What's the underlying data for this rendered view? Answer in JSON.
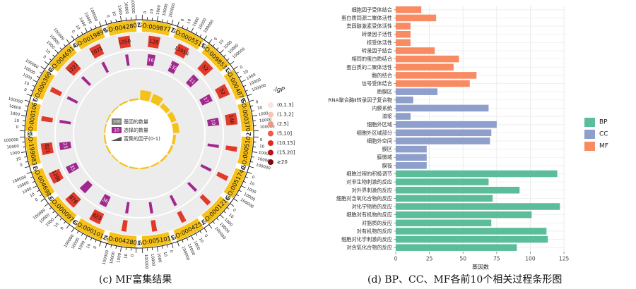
{
  "panel_c": {
    "caption": "(c)  MF富集结果",
    "terms": [
      "GO:0098772",
      "GO:0005515",
      "GO:0098531",
      "GO:0004879",
      "GO:0003707",
      "GO:0005102",
      "GO:0051740",
      "GO:0001216",
      "GO:0004252",
      "GO:0051015",
      "GO:0042803",
      "GO:0001012",
      "GO:0000976",
      "GO:0046983",
      "GO:1990837",
      "GO:0001067",
      "GO:0003690",
      "GO:0046914",
      "GO:0019899",
      "GO:0042802"
    ],
    "ring2_counts": [
      "126",
      "13916",
      "52",
      "52",
      "140",
      "",
      "",
      "",
      "",
      "",
      "",
      "823",
      "876",
      "1290",
      "821",
      "",
      "",
      "1221",
      "1071",
      "1050"
    ],
    "ring3_counts": [
      "16",
      "132",
      "11",
      "17",
      "10",
      "",
      "",
      "",
      "",
      "",
      "",
      "36",
      "",
      "35",
      "25",
      "",
      "",
      "",
      "",
      ""
    ],
    "legend": {
      "title": "-lgP",
      "bins": [
        "(0,1.3]",
        "(1.3,2]",
        "(2,5]",
        "(5,10]",
        "(10,15]",
        "(15,20]",
        "≥20"
      ],
      "bin_colors": [
        "#fbe4dc",
        "#f9c2b0",
        "#f5957b",
        "#ef5a42",
        "#e0281f",
        "#b9141a",
        "#7a0a0f"
      ]
    },
    "inner_legend": [
      {
        "swatch_label": "100",
        "text": "基因的数量",
        "color": "#7a7a7a"
      },
      {
        "swatch_label": "10",
        "text": "选择的数量",
        "color": "#a0288e"
      },
      {
        "swatch_label": "",
        "text": "富集的因子(0-1)",
        "color": "#555555"
      }
    ],
    "tick_labels": [
      "0",
      "10",
      "1000",
      "10000",
      "100000"
    ],
    "colors": {
      "outer_ring": "#f6c21a",
      "count_red": "#e23a2a",
      "count_purple": "#a0288e",
      "bg_ring": "#ececec",
      "bar_yellow": "#f6c21a"
    }
  },
  "panel_d": {
    "caption": "(d)  BP、CC、MF各前10个相关过程条形图"
  },
  "chart_data": {
    "type": "bar",
    "orientation": "horizontal",
    "xlabel": "基因数",
    "ylabel": "",
    "xlim": [
      0,
      126
    ],
    "xticks": [
      0,
      25,
      50,
      75,
      100,
      125
    ],
    "grid": true,
    "legend_position": "right",
    "legend": [
      {
        "name": "BP",
        "color": "#5cbd9a"
      },
      {
        "name": "CC",
        "color": "#8e9fcb"
      },
      {
        "name": "MF",
        "color": "#f88b62"
      }
    ],
    "bars": [
      {
        "label": "细胞因子受体结合",
        "value": 19,
        "group": "MF"
      },
      {
        "label": "蛋白质同源二聚体活性",
        "value": 30,
        "group": "MF"
      },
      {
        "label": "类固醇激素受体活性",
        "value": 11,
        "group": "MF"
      },
      {
        "label": "转录因子活性",
        "value": 11,
        "group": "MF"
      },
      {
        "label": "核受体活性",
        "value": 11,
        "group": "MF"
      },
      {
        "label": "转录因子结合",
        "value": 29,
        "group": "MF"
      },
      {
        "label": "相同的蛋白质结合",
        "value": 47,
        "group": "MF"
      },
      {
        "label": "蛋白质的二聚体活性",
        "value": 43,
        "group": "MF"
      },
      {
        "label": "酶的结合",
        "value": 60,
        "group": "MF"
      },
      {
        "label": "信号受体结合",
        "value": 55,
        "group": "MF"
      },
      {
        "label": "质膜区",
        "value": 31,
        "group": "CC"
      },
      {
        "label": "RNA聚合酶Ⅱ转录因子复合物",
        "value": 13,
        "group": "CC"
      },
      {
        "label": "内膜系统",
        "value": 69,
        "group": "CC"
      },
      {
        "label": "溶浆",
        "value": 11,
        "group": "CC"
      },
      {
        "label": "细胞外区域",
        "value": 75,
        "group": "CC"
      },
      {
        "label": "细胞外区域部分",
        "value": 71,
        "group": "CC"
      },
      {
        "label": "细胞外空间",
        "value": 70,
        "group": "CC"
      },
      {
        "label": "膜区",
        "value": 23,
        "group": "CC"
      },
      {
        "label": "膜微域",
        "value": 23,
        "group": "CC"
      },
      {
        "label": "膜筏",
        "value": 23,
        "group": "CC"
      },
      {
        "label": "细胞过程的积极调节",
        "value": 120,
        "group": "BP"
      },
      {
        "label": "对非生物刺激的反应",
        "value": 69,
        "group": "BP"
      },
      {
        "label": "对外界刺激的反应",
        "value": 92,
        "group": "BP"
      },
      {
        "label": "细胞对含氧化合物的反应",
        "value": 72,
        "group": "BP"
      },
      {
        "label": "对化学物质的反应",
        "value": 122,
        "group": "BP"
      },
      {
        "label": "细胞对有机物的反应",
        "value": 101,
        "group": "BP"
      },
      {
        "label": "对脂质的反应",
        "value": 71,
        "group": "BP"
      },
      {
        "label": "对有机物的反应",
        "value": 112,
        "group": "BP"
      },
      {
        "label": "细胞对化学刺激的反应",
        "value": 113,
        "group": "BP"
      },
      {
        "label": "对含氧化合物的反应",
        "value": 90,
        "group": "BP"
      }
    ]
  }
}
